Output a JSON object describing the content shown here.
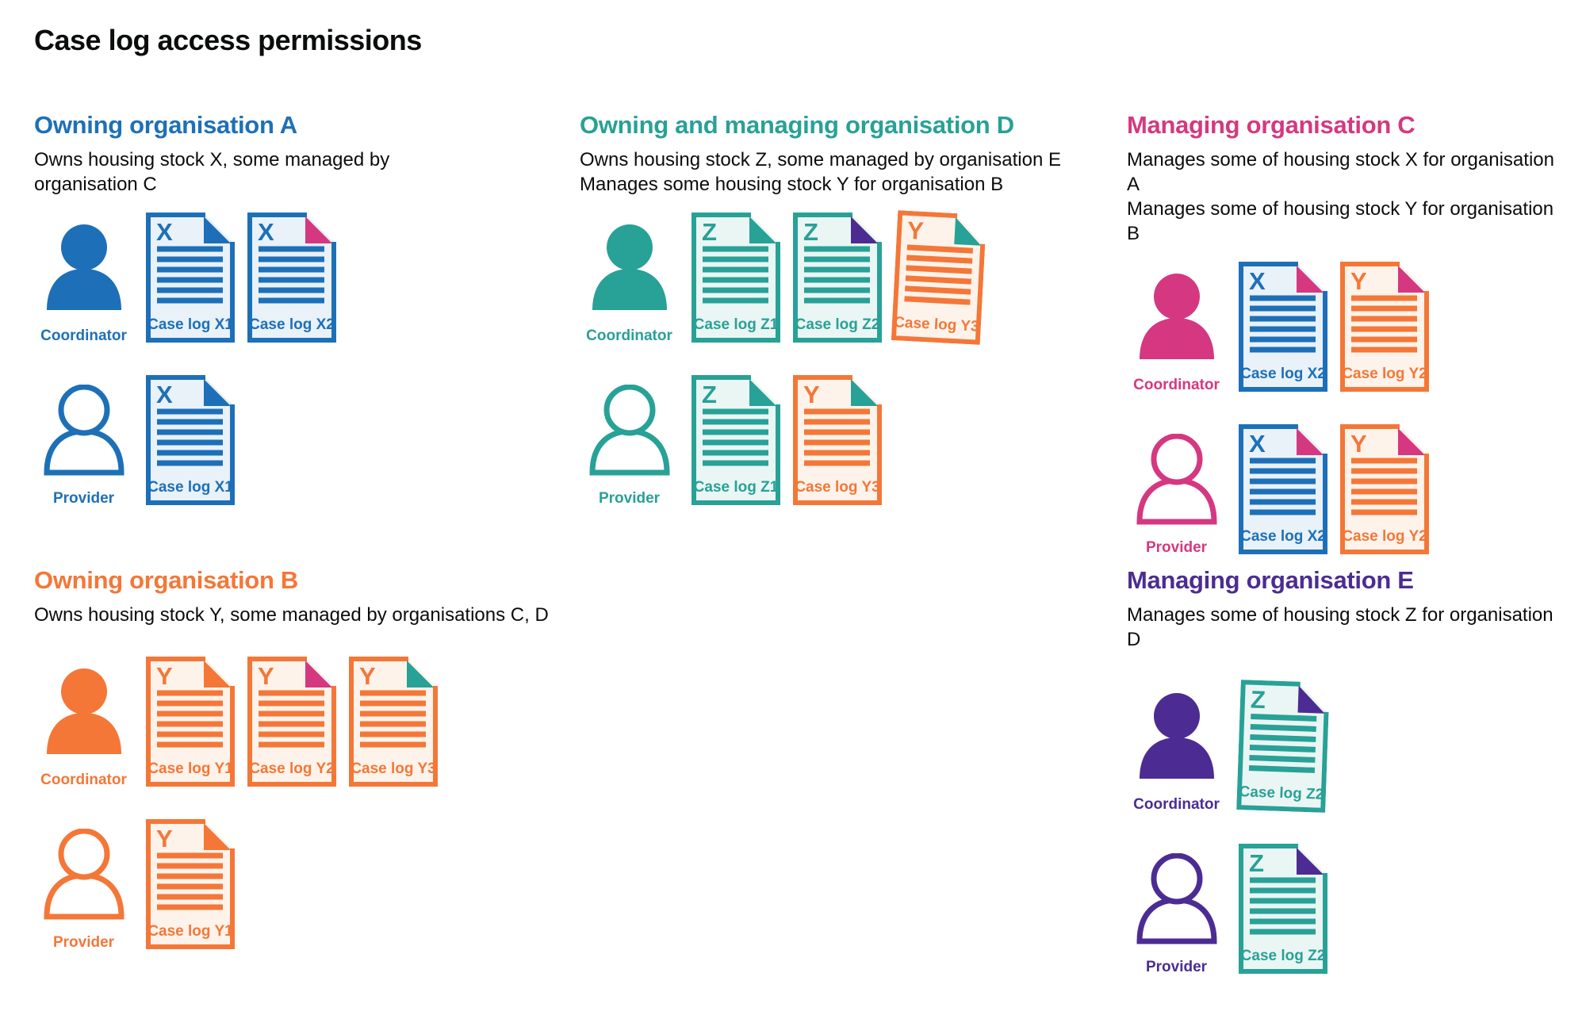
{
  "title": "Case log access permissions",
  "palette": {
    "blue": "#1d70b8",
    "teal": "#28a197",
    "pink": "#d53880",
    "orange": "#f47738",
    "purple": "#4c2c92",
    "text": "#0b0c0c",
    "doc_fill_blue": "#e9f1f9",
    "doc_fill_teal": "#eaf6f4",
    "doc_fill_orange": "#fdf3ea"
  },
  "role_labels": {
    "coordinator": "Coordinator",
    "provider": "Provider"
  },
  "sections": [
    {
      "id": "org-a",
      "heading": "Owning organisation A",
      "color": "blue",
      "position": "top-left",
      "description": [
        "Owns housing stock X, some managed by organisation C"
      ],
      "rows": [
        {
          "role": "coordinator",
          "person_style": "filled",
          "docs": [
            {
              "label": "Case log X1",
              "letter": "X",
              "stock_color": "blue",
              "fold_color": "blue",
              "tilt": 0
            },
            {
              "label": "Case log X2",
              "letter": "X",
              "stock_color": "blue",
              "fold_color": "pink",
              "tilt": 0
            }
          ]
        },
        {
          "role": "provider",
          "person_style": "outline",
          "docs": [
            {
              "label": "Case log X1",
              "letter": "X",
              "stock_color": "blue",
              "fold_color": "blue",
              "tilt": 0
            }
          ]
        }
      ]
    },
    {
      "id": "org-d",
      "heading": "Owning and managing organisation D",
      "color": "teal",
      "position": "top-middle",
      "description": [
        "Owns housing stock Z, some managed by organisation E",
        "Manages some housing stock Y for organisation B"
      ],
      "rows": [
        {
          "role": "coordinator",
          "person_style": "filled",
          "docs": [
            {
              "label": "Case log Z1",
              "letter": "Z",
              "stock_color": "teal",
              "fold_color": "teal",
              "tilt": 0
            },
            {
              "label": "Case log Z2",
              "letter": "Z",
              "stock_color": "teal",
              "fold_color": "purple",
              "tilt": 0
            },
            {
              "label": "Case log Y3",
              "letter": "Y",
              "stock_color": "orange",
              "fold_color": "teal",
              "tilt": 3
            }
          ]
        },
        {
          "role": "provider",
          "person_style": "outline",
          "docs": [
            {
              "label": "Case log Z1",
              "letter": "Z",
              "stock_color": "teal",
              "fold_color": "teal",
              "tilt": 0
            },
            {
              "label": "Case log Y3",
              "letter": "Y",
              "stock_color": "orange",
              "fold_color": "teal",
              "tilt": 0
            }
          ]
        }
      ]
    },
    {
      "id": "org-c",
      "heading": "Managing organisation C",
      "color": "pink",
      "position": "top-right",
      "description": [
        "Manages some of housing stock X for organisation A",
        "Manages some of housing stock Y for organisation B"
      ],
      "rows": [
        {
          "role": "coordinator",
          "person_style": "filled",
          "docs": [
            {
              "label": "Case log X2",
              "letter": "X",
              "stock_color": "blue",
              "fold_color": "pink",
              "tilt": 0
            },
            {
              "label": "Case log Y2",
              "letter": "Y",
              "stock_color": "orange",
              "fold_color": "pink",
              "tilt": 0
            }
          ]
        },
        {
          "role": "provider",
          "person_style": "outline",
          "docs": [
            {
              "label": "Case log X2",
              "letter": "X",
              "stock_color": "blue",
              "fold_color": "pink",
              "tilt": 0
            },
            {
              "label": "Case log Y2",
              "letter": "Y",
              "stock_color": "orange",
              "fold_color": "pink",
              "tilt": 0
            }
          ]
        }
      ]
    },
    {
      "id": "org-b",
      "heading": "Owning organisation B",
      "color": "orange",
      "position": "bottom-left",
      "description": [
        "Owns housing stock Y, some managed by organisations C, D"
      ],
      "rows": [
        {
          "role": "coordinator",
          "person_style": "filled",
          "docs": [
            {
              "label": "Case log Y1",
              "letter": "Y",
              "stock_color": "orange",
              "fold_color": "orange",
              "tilt": 0
            },
            {
              "label": "Case log Y2",
              "letter": "Y",
              "stock_color": "orange",
              "fold_color": "pink",
              "tilt": 0
            },
            {
              "label": "Case log Y3",
              "letter": "Y",
              "stock_color": "orange",
              "fold_color": "teal",
              "tilt": 0
            }
          ]
        },
        {
          "role": "provider",
          "person_style": "outline",
          "docs": [
            {
              "label": "Case log Y1",
              "letter": "Y",
              "stock_color": "orange",
              "fold_color": "orange",
              "tilt": 0
            }
          ]
        }
      ]
    },
    {
      "id": "org-e",
      "heading": "Managing organisation E",
      "color": "purple",
      "position": "bottom-right",
      "description": [
        "Manages some of housing stock Z for organisation D"
      ],
      "rows": [
        {
          "role": "coordinator",
          "person_style": "filled",
          "docs": [
            {
              "label": "Case log Z2",
              "letter": "Z",
              "stock_color": "teal",
              "fold_color": "purple",
              "tilt": 2
            }
          ]
        },
        {
          "role": "provider",
          "person_style": "outline",
          "docs": [
            {
              "label": "Case log Z2",
              "letter": "Z",
              "stock_color": "teal",
              "fold_color": "purple",
              "tilt": 0
            }
          ]
        }
      ]
    }
  ]
}
